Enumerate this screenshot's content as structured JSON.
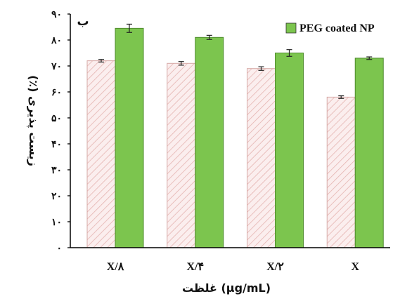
{
  "chart_data": {
    "type": "bar",
    "panel_label": "ب",
    "categories": [
      "X/۸",
      "X/۴",
      "X/۲",
      "X"
    ],
    "xlabel": "غلظت (μg/mL)",
    "ylabel": "زیست پذیری (٪)",
    "ylim": [
      0,
      90
    ],
    "yticks": [
      0,
      10,
      20,
      30,
      40,
      50,
      60,
      70,
      80,
      90
    ],
    "ytick_labels": [
      "۰",
      "۱۰",
      "۲۰",
      "۳۰",
      "۴۰",
      "۵۰",
      "۶۰",
      "۷۰",
      "۸۰",
      "۹۰"
    ],
    "grid": false,
    "legend_position": "top-right",
    "series": [
      {
        "values": [
          72,
          71,
          69,
          58
        ],
        "errors": [
          0.5,
          0.7,
          0.7,
          0.5
        ],
        "color": "#fbeeee",
        "pattern": "diagonal-hatch",
        "hatch_color": "#e5b3b0"
      },
      {
        "name": "PEG coated NP",
        "values": [
          84.5,
          81,
          75,
          73
        ],
        "errors": [
          1.6,
          0.8,
          1.3,
          0.5
        ],
        "color": "#7cc54e"
      }
    ]
  }
}
